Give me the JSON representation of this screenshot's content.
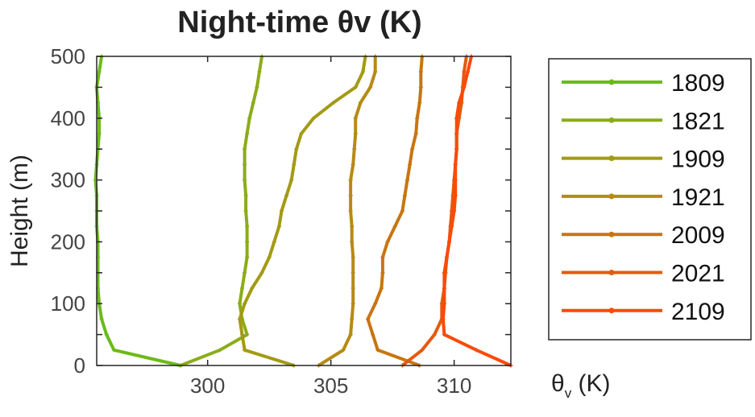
{
  "chart_data": {
    "type": "line",
    "title": "Night-time θv (K)",
    "xlabel": {
      "main": "θ",
      "sub": "v",
      "unit": " (K)"
    },
    "ylabel": "Height (m)",
    "xlim": [
      295.5,
      312.3
    ],
    "ylim": [
      0,
      500
    ],
    "xticks": [
      300,
      305,
      310
    ],
    "yticks": [
      0,
      100,
      200,
      300,
      400,
      500
    ],
    "grid": false,
    "legend_position": "right-outside",
    "heights": [
      0,
      25,
      50,
      75,
      100,
      125,
      150,
      175,
      200,
      225,
      250,
      275,
      300,
      325,
      350,
      375,
      400,
      425,
      450,
      475,
      500
    ],
    "series": [
      {
        "name": "1809",
        "color": "#6cba1a",
        "values": [
          298.9,
          296.2,
          295.9,
          295.7,
          295.6,
          295.55,
          295.55,
          295.55,
          295.55,
          295.5,
          295.5,
          295.5,
          295.45,
          295.5,
          295.55,
          295.6,
          295.6,
          295.55,
          295.5,
          295.6,
          295.7
        ]
      },
      {
        "name": "1821",
        "color": "#8bac18",
        "values": [
          298.9,
          300.5,
          301.6,
          301.4,
          301.3,
          301.4,
          301.5,
          301.6,
          301.6,
          301.6,
          301.55,
          301.55,
          301.5,
          301.5,
          301.5,
          301.6,
          301.7,
          301.85,
          302.0,
          302.1,
          302.2
        ]
      },
      {
        "name": "1909",
        "color": "#a39a16",
        "values": [
          303.5,
          301.5,
          301.4,
          301.3,
          301.5,
          301.8,
          302.2,
          302.5,
          302.7,
          302.9,
          303.0,
          303.2,
          303.4,
          303.5,
          303.6,
          303.8,
          304.3,
          305.1,
          306.0,
          306.3,
          306.4
        ]
      },
      {
        "name": "1921",
        "color": "#b68a14",
        "values": [
          304.5,
          305.5,
          305.8,
          305.85,
          305.9,
          305.9,
          305.9,
          305.9,
          305.85,
          305.85,
          305.8,
          305.8,
          305.8,
          305.9,
          305.95,
          306.0,
          306.0,
          306.2,
          306.6,
          306.8,
          306.8
        ]
      },
      {
        "name": "2009",
        "color": "#c87510",
        "values": [
          308.6,
          306.9,
          306.7,
          306.5,
          306.8,
          307.05,
          307.1,
          307.1,
          307.3,
          307.6,
          307.9,
          308.0,
          308.1,
          308.2,
          308.3,
          308.45,
          308.5,
          308.6,
          308.65,
          308.65,
          308.7
        ]
      },
      {
        "name": "2021",
        "color": "#e45a10",
        "values": [
          307.9,
          308.7,
          309.2,
          309.5,
          309.5,
          309.6,
          309.65,
          309.7,
          309.8,
          309.85,
          309.9,
          309.95,
          310.0,
          310.05,
          310.1,
          310.1,
          310.2,
          310.3,
          310.35,
          310.4,
          310.5
        ]
      },
      {
        "name": "2109",
        "color": "#fb4a08",
        "values": [
          312.3,
          310.9,
          309.6,
          309.55,
          309.6,
          309.6,
          309.6,
          309.7,
          309.8,
          309.9,
          310.0,
          310.05,
          310.05,
          310.05,
          310.1,
          310.1,
          310.1,
          310.2,
          310.4,
          310.55,
          310.7
        ]
      }
    ]
  }
}
